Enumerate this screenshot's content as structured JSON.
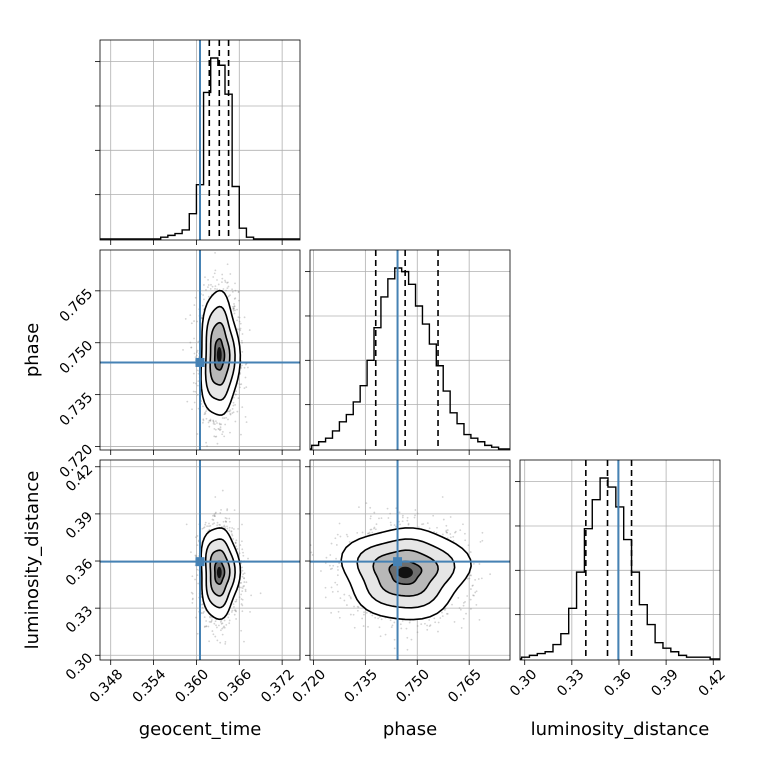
{
  "chart_data": {
    "type": "corner",
    "parameters": [
      {
        "name": "geocent_time",
        "label": "geocent_time",
        "range": [
          0.3465,
          0.3745
        ],
        "ticks": [
          "0.348",
          "0.354",
          "0.360",
          "0.366",
          "0.372"
        ],
        "truth": 0.3605,
        "quantiles": [
          0.3618,
          0.3632,
          0.3645
        ],
        "histogram_peak_bin": 0.3628
      },
      {
        "name": "phase",
        "label": "phase",
        "range": [
          0.719,
          0.7768
        ],
        "ticks": [
          "0.720",
          "0.735",
          "0.750",
          "0.765"
        ],
        "truth": 0.7443,
        "quantiles": [
          0.738,
          0.7465,
          0.756
        ],
        "histogram_peak_bin": 0.7445
      },
      {
        "name": "luminosity_distance",
        "label": "luminosity_distance",
        "range": [
          0.297,
          0.4243
        ],
        "ticks": [
          "0.30",
          "0.33",
          "0.36",
          "0.39",
          "0.42"
        ],
        "truth": 0.3596,
        "quantiles": [
          0.3389,
          0.3527,
          0.368
        ],
        "histogram_peak_bin": 0.351
      }
    ],
    "histograms": [
      {
        "param": "geocent_time",
        "bin_centers": [
          0.3555,
          0.3565,
          0.3575,
          0.3585,
          0.3595,
          0.3605,
          0.3615,
          0.3625,
          0.3635,
          0.3645,
          0.3655,
          0.3665,
          0.3675
        ],
        "counts": [
          1,
          2,
          3,
          5,
          14,
          30,
          81,
          100,
          96,
          80,
          29,
          6,
          1
        ]
      },
      {
        "param": "phase",
        "bin_centers": [
          0.7205,
          0.7225,
          0.7245,
          0.7265,
          0.7285,
          0.7305,
          0.7325,
          0.7345,
          0.7365,
          0.7385,
          0.7405,
          0.7425,
          0.7445,
          0.7465,
          0.7485,
          0.7505,
          0.7525,
          0.7545,
          0.7565,
          0.7585,
          0.7605,
          0.7625,
          0.7645,
          0.7665,
          0.7685,
          0.7705,
          0.7725
        ],
        "counts": [
          2,
          4,
          6,
          10,
          15,
          19,
          26,
          35,
          49,
          67,
          84,
          94,
          100,
          98,
          91,
          79,
          69,
          58,
          46,
          32,
          20,
          14,
          8,
          6,
          4,
          2,
          1
        ]
      },
      {
        "param": "luminosity_distance",
        "bin_centers": [
          0.3005,
          0.3055,
          0.3105,
          0.3155,
          0.3205,
          0.3255,
          0.3305,
          0.3355,
          0.3405,
          0.3455,
          0.3505,
          0.3555,
          0.3605,
          0.3655,
          0.3705,
          0.3755,
          0.3805,
          0.3855,
          0.3905,
          0.3955,
          0.4005,
          0.4055,
          0.4105,
          0.4155
        ],
        "counts": [
          1,
          2,
          3,
          4,
          8,
          14,
          28,
          48,
          72,
          88,
          100,
          95,
          84,
          66,
          48,
          30,
          19,
          9,
          6,
          4,
          2,
          1,
          1,
          1
        ]
      }
    ],
    "contour_levels": [
      "0.5-sigma",
      "1-sigma",
      "1.5-sigma",
      "2-sigma"
    ],
    "truth_color": "#4682b4",
    "grid": true
  }
}
